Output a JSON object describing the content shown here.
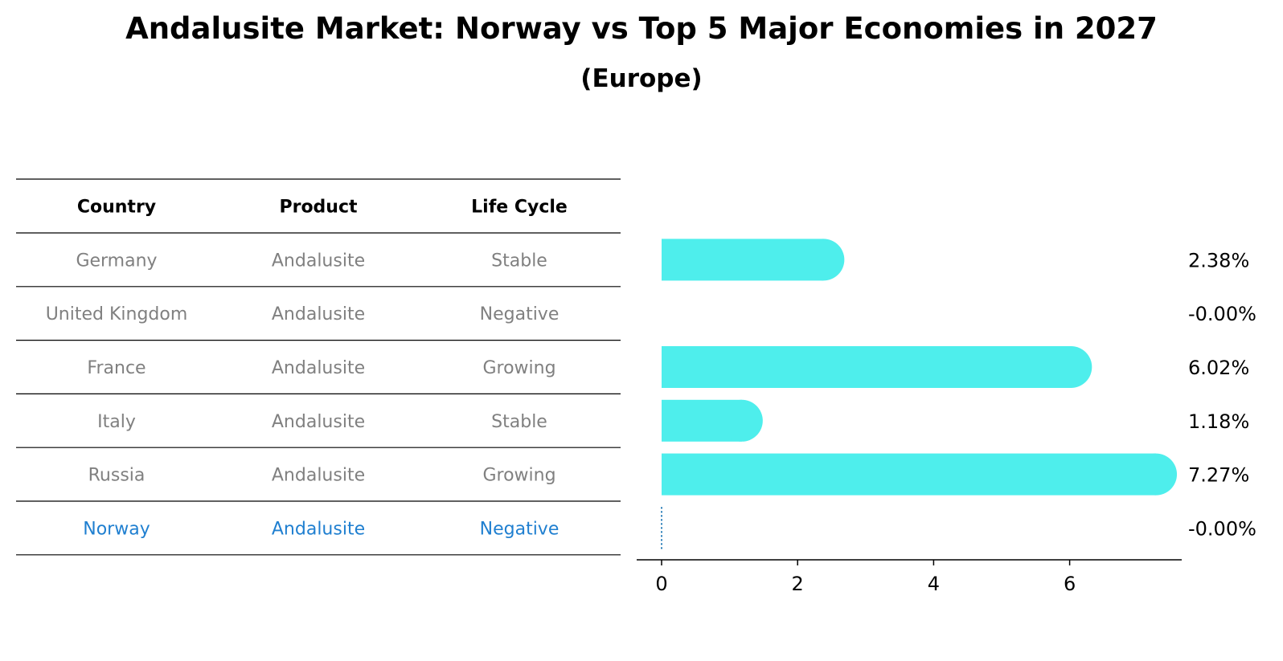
{
  "title": "Andalusite Market: Norway vs Top 5 Major Economies in 2027",
  "subtitle": "(Europe)",
  "table": {
    "headers": [
      "Country",
      "Product",
      "Life Cycle"
    ],
    "rows": [
      {
        "country": "Germany",
        "product": "Andalusite",
        "life_cycle": "Stable",
        "highlight": false
      },
      {
        "country": "United Kingdom",
        "product": "Andalusite",
        "life_cycle": "Negative",
        "highlight": false
      },
      {
        "country": "France",
        "product": "Andalusite",
        "life_cycle": "Growing",
        "highlight": false
      },
      {
        "country": "Italy",
        "product": "Andalusite",
        "life_cycle": "Stable",
        "highlight": false
      },
      {
        "country": "Russia",
        "product": "Andalusite",
        "life_cycle": "Growing",
        "highlight": false
      },
      {
        "country": "Norway",
        "product": "Andalusite",
        "life_cycle": "Negative",
        "highlight": true
      }
    ]
  },
  "colors": {
    "bar": "#4eeeec",
    "highlight_text": "#1f7fd0",
    "normal_text": "#808080",
    "axis": "#000000",
    "zero_line": "#1f77b4"
  },
  "chart_data": {
    "type": "bar",
    "orientation": "horizontal",
    "categories": [
      "Germany",
      "United Kingdom",
      "France",
      "Italy",
      "Russia",
      "Norway"
    ],
    "values": [
      2.38,
      -0.0,
      6.02,
      1.18,
      7.27,
      -0.0
    ],
    "value_labels": [
      "2.38%",
      "-0.00%",
      "6.02%",
      "1.18%",
      "7.27%",
      "-0.00%"
    ],
    "xlim": [
      -0.35,
      7.65
    ],
    "xticks": [
      0,
      2,
      4,
      6
    ],
    "xtick_labels": [
      "0",
      "2",
      "4",
      "6"
    ],
    "grid": false
  }
}
